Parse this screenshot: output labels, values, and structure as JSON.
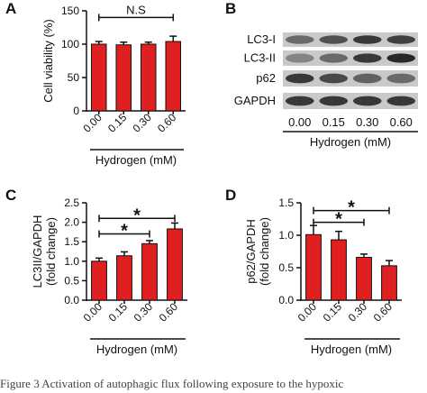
{
  "figure": {
    "bar_color": "#e02020",
    "caption_fragment": "Figure 3 Activation of autophagic flux following exposure to the hypoxic"
  },
  "chart_data": [
    {
      "panel": "A",
      "type": "bar",
      "categories": [
        "0.00",
        "0.15",
        "0.30",
        "0.60"
      ],
      "values": [
        100,
        99,
        100,
        104
      ],
      "errors": [
        4,
        4,
        3,
        8
      ],
      "xlabel": "Hydrogen (mM)",
      "ylabel": "Cell viability (%)",
      "ylim": [
        0,
        150
      ],
      "yticks": [
        "0",
        "50",
        "100",
        "150"
      ],
      "significance": [
        {
          "label": "N.S",
          "from": 0,
          "to": 3,
          "y": 140
        }
      ]
    },
    {
      "panel": "C",
      "type": "bar",
      "categories": [
        "0.00",
        "0.15",
        "0.30",
        "0.60"
      ],
      "values": [
        1.0,
        1.14,
        1.45,
        1.83
      ],
      "errors": [
        0.08,
        0.1,
        0.08,
        0.15
      ],
      "xlabel": "Hydrogen (mM)",
      "ylabel_lines": [
        "LC3II/GAPDH",
        "(fold change)"
      ],
      "ylim": [
        0,
        2.5
      ],
      "yticks": [
        "0.0",
        "0.5",
        "1.0",
        "1.5",
        "2.0",
        "2.5"
      ],
      "significance": [
        {
          "label": "*",
          "from": 0,
          "to": 3,
          "y": 2.1
        },
        {
          "label": "*",
          "from": 0,
          "to": 2,
          "y": 1.7
        }
      ]
    },
    {
      "panel": "D",
      "type": "bar",
      "categories": [
        "0.00",
        "0.15",
        "0.30",
        "0.60"
      ],
      "values": [
        1.01,
        0.93,
        0.66,
        0.53
      ],
      "errors": [
        0.14,
        0.13,
        0.05,
        0.08
      ],
      "xlabel": "Hydrogen (mM)",
      "ylabel_lines": [
        "p62/GAPDH",
        "(fold change)"
      ],
      "ylim": [
        0,
        1.5
      ],
      "yticks": [
        "0.0",
        "0.5",
        "1.0",
        "1.5"
      ],
      "significance": [
        {
          "label": "*",
          "from": 0,
          "to": 3,
          "y": 1.38
        },
        {
          "label": "*",
          "from": 0,
          "to": 2,
          "y": 1.2
        }
      ]
    }
  ],
  "blot": {
    "panel": "B",
    "rows": [
      "LC3-I",
      "LC3-II",
      "p62",
      "GAPDH"
    ],
    "lanes": [
      "0.00",
      "0.15",
      "0.30",
      "0.60"
    ],
    "xlabel": "Hydrogen (mM)",
    "band_intensity": [
      [
        0.55,
        0.7,
        0.85,
        0.8
      ],
      [
        0.4,
        0.55,
        0.85,
        0.95
      ],
      [
        0.85,
        0.75,
        0.6,
        0.55
      ],
      [
        0.85,
        0.85,
        0.85,
        0.85
      ]
    ]
  }
}
